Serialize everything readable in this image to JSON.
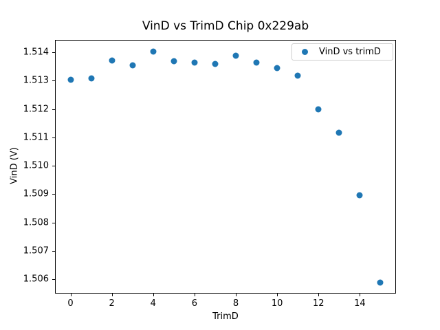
{
  "figure": {
    "background": "#ffffff"
  },
  "chart_data": {
    "type": "scatter",
    "title": "VinD vs TrimD Chip 0x229ab",
    "xlabel": "TrimD",
    "ylabel": "VinD (V)",
    "legend": {
      "position": "upper right",
      "entries": [
        {
          "label": "VinD vs trimD",
          "marker": "circle",
          "color": "#1f77b4"
        }
      ]
    },
    "x": [
      0,
      1,
      2,
      3,
      4,
      5,
      6,
      7,
      8,
      9,
      10,
      11,
      12,
      13,
      14,
      15
    ],
    "y": [
      1.51303,
      1.51308,
      1.51371,
      1.51355,
      1.51403,
      1.51368,
      1.51364,
      1.5136,
      1.51389,
      1.51364,
      1.51344,
      1.51318,
      1.512,
      1.51116,
      1.50895,
      1.50589
    ],
    "xlim": [
      -0.75,
      15.75
    ],
    "ylim": [
      1.50549,
      1.51445
    ],
    "xticks": [
      0,
      2,
      4,
      6,
      8,
      10,
      12,
      14
    ],
    "xtick_labels": [
      "0",
      "2",
      "4",
      "6",
      "8",
      "10",
      "12",
      "14"
    ],
    "yticks": [
      1.506,
      1.507,
      1.508,
      1.509,
      1.51,
      1.511,
      1.512,
      1.513,
      1.514
    ],
    "ytick_labels": [
      "1.506",
      "1.507",
      "1.508",
      "1.509",
      "1.510",
      "1.511",
      "1.512",
      "1.513",
      "1.514"
    ],
    "grid": false,
    "marker_color": "#1f77b4",
    "marker_size_px": 9,
    "background": "#ffffff"
  }
}
